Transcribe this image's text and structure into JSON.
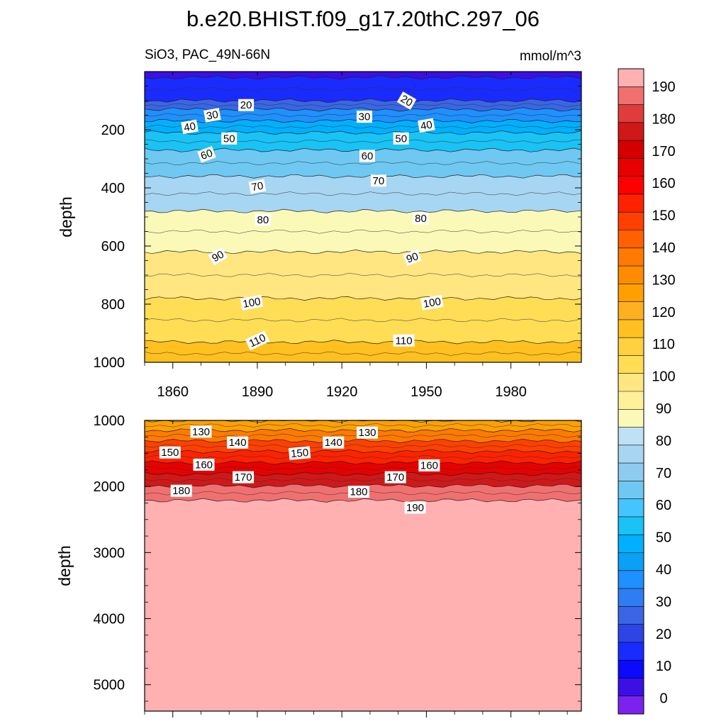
{
  "title": "b.e20.BHIST.f09_g17.20thC.297_06",
  "subtitle_left": "SiO3, PAC_49N-66N",
  "subtitle_right": "mmol/m^3",
  "chart_data": [
    {
      "type": "heatmap",
      "panel": "upper",
      "xlabel": "",
      "ylabel": "depth",
      "x_range": [
        1850,
        2005
      ],
      "ylim": [
        1000,
        0
      ],
      "x_ticks": [
        1860,
        1890,
        1920,
        1950,
        1980
      ],
      "y_ticks": [
        200,
        400,
        600,
        800,
        1000
      ],
      "contour_depths": [
        {
          "level": 10,
          "depth": 20
        },
        {
          "level": 20,
          "depth": 100
        },
        {
          "level": 30,
          "depth": 130
        },
        {
          "level": 40,
          "depth": 170
        },
        {
          "level": 50,
          "depth": 210
        },
        {
          "level": 60,
          "depth": 270
        },
        {
          "level": 70,
          "depth": 360
        },
        {
          "level": 80,
          "depth": 480
        },
        {
          "level": 90,
          "depth": 620
        },
        {
          "level": 100,
          "depth": 780
        },
        {
          "level": 110,
          "depth": 930
        },
        {
          "level": 120,
          "depth": 1010
        }
      ],
      "contour_labels": [
        {
          "text": "20",
          "year": 1886,
          "depth": 115,
          "angle": 0
        },
        {
          "text": "20",
          "year": 1943,
          "depth": 100,
          "angle": 30
        },
        {
          "text": "30",
          "year": 1874,
          "depth": 150,
          "angle": -10
        },
        {
          "text": "30",
          "year": 1928,
          "depth": 155,
          "angle": 0
        },
        {
          "text": "40",
          "year": 1866,
          "depth": 190,
          "angle": -10
        },
        {
          "text": "40",
          "year": 1950,
          "depth": 185,
          "angle": -10
        },
        {
          "text": "50",
          "year": 1880,
          "depth": 230,
          "angle": 0
        },
        {
          "text": "50",
          "year": 1941,
          "depth": 230,
          "angle": 0
        },
        {
          "text": "60",
          "year": 1872,
          "depth": 285,
          "angle": -20
        },
        {
          "text": "60",
          "year": 1929,
          "depth": 290,
          "angle": 0
        },
        {
          "text": "70",
          "year": 1890,
          "depth": 395,
          "angle": -10
        },
        {
          "text": "70",
          "year": 1933,
          "depth": 375,
          "angle": 0
        },
        {
          "text": "80",
          "year": 1892,
          "depth": 510,
          "angle": 0
        },
        {
          "text": "80",
          "year": 1948,
          "depth": 505,
          "angle": 0
        },
        {
          "text": "90",
          "year": 1876,
          "depth": 635,
          "angle": -30
        },
        {
          "text": "90",
          "year": 1945,
          "depth": 640,
          "angle": -20
        },
        {
          "text": "100",
          "year": 1888,
          "depth": 795,
          "angle": -10
        },
        {
          "text": "100",
          "year": 1952,
          "depth": 795,
          "angle": -10
        },
        {
          "text": "110",
          "year": 1890,
          "depth": 925,
          "angle": -25
        },
        {
          "text": "110",
          "year": 1942,
          "depth": 925,
          "angle": 0
        }
      ]
    },
    {
      "type": "heatmap",
      "panel": "lower",
      "xlabel": "",
      "ylabel": "depth",
      "x_range": [
        1850,
        2005
      ],
      "ylim": [
        5400,
        1000
      ],
      "y_ticks": [
        1000,
        2000,
        3000,
        4000,
        5000
      ],
      "contour_depths": [
        {
          "level": 120,
          "depth": 1000
        },
        {
          "level": 130,
          "depth": 1150
        },
        {
          "level": 140,
          "depth": 1310
        },
        {
          "level": 150,
          "depth": 1470
        },
        {
          "level": 160,
          "depth": 1640
        },
        {
          "level": 170,
          "depth": 1810
        },
        {
          "level": 180,
          "depth": 1990
        },
        {
          "level": 190,
          "depth": 2210
        }
      ],
      "contour_labels": [
        {
          "text": "130",
          "year": 1870,
          "depth": 1170,
          "angle": 0
        },
        {
          "text": "130",
          "year": 1929,
          "depth": 1185,
          "angle": 0
        },
        {
          "text": "140",
          "year": 1883,
          "depth": 1335,
          "angle": 0
        },
        {
          "text": "140",
          "year": 1917,
          "depth": 1335,
          "angle": 0
        },
        {
          "text": "150",
          "year": 1859,
          "depth": 1485,
          "angle": 0
        },
        {
          "text": "150",
          "year": 1905,
          "depth": 1495,
          "angle": -5
        },
        {
          "text": "160",
          "year": 1871,
          "depth": 1670,
          "angle": 0
        },
        {
          "text": "160",
          "year": 1951,
          "depth": 1680,
          "angle": 0
        },
        {
          "text": "170",
          "year": 1885,
          "depth": 1860,
          "angle": 0
        },
        {
          "text": "170",
          "year": 1939,
          "depth": 1860,
          "angle": 0
        },
        {
          "text": "180",
          "year": 1863,
          "depth": 2065,
          "angle": 0
        },
        {
          "text": "180",
          "year": 1926,
          "depth": 2080,
          "angle": 0
        },
        {
          "text": "190",
          "year": 1946,
          "depth": 2320,
          "angle": 0
        }
      ]
    }
  ],
  "colorbar": {
    "levels": [
      0,
      10,
      20,
      30,
      40,
      50,
      60,
      70,
      80,
      90,
      100,
      110,
      120,
      130,
      140,
      150,
      160,
      170,
      180,
      190
    ],
    "label_values": [
      "0",
      "10",
      "20",
      "30",
      "40",
      "50",
      "60",
      "70",
      "80",
      "90",
      "100",
      "110",
      "120",
      "130",
      "140",
      "150",
      "160",
      "170",
      "180",
      "190"
    ],
    "colors": [
      "#7c22ee",
      "#3b0fe6",
      "#0a0aff",
      "#1a2bff",
      "#2e45e6",
      "#3a66e6",
      "#2f7df2",
      "#1e90ff",
      "#0aa0f5",
      "#00b0ff",
      "#19c3f5",
      "#44c5ff",
      "#6ec8f2",
      "#8fcbee",
      "#a7d6f2",
      "#bfe1f5",
      "#fbf9b8",
      "#fff09a",
      "#ffe680",
      "#ffdd55",
      "#ffd040",
      "#ffc020",
      "#ffb020",
      "#ffa000",
      "#ff8c00",
      "#ff7a00",
      "#ff6000",
      "#ff4000",
      "#ff2200",
      "#ff0000",
      "#e80000",
      "#d40000",
      "#d01818",
      "#e03c3c",
      "#f07070",
      "#ffb0b0"
    ]
  }
}
